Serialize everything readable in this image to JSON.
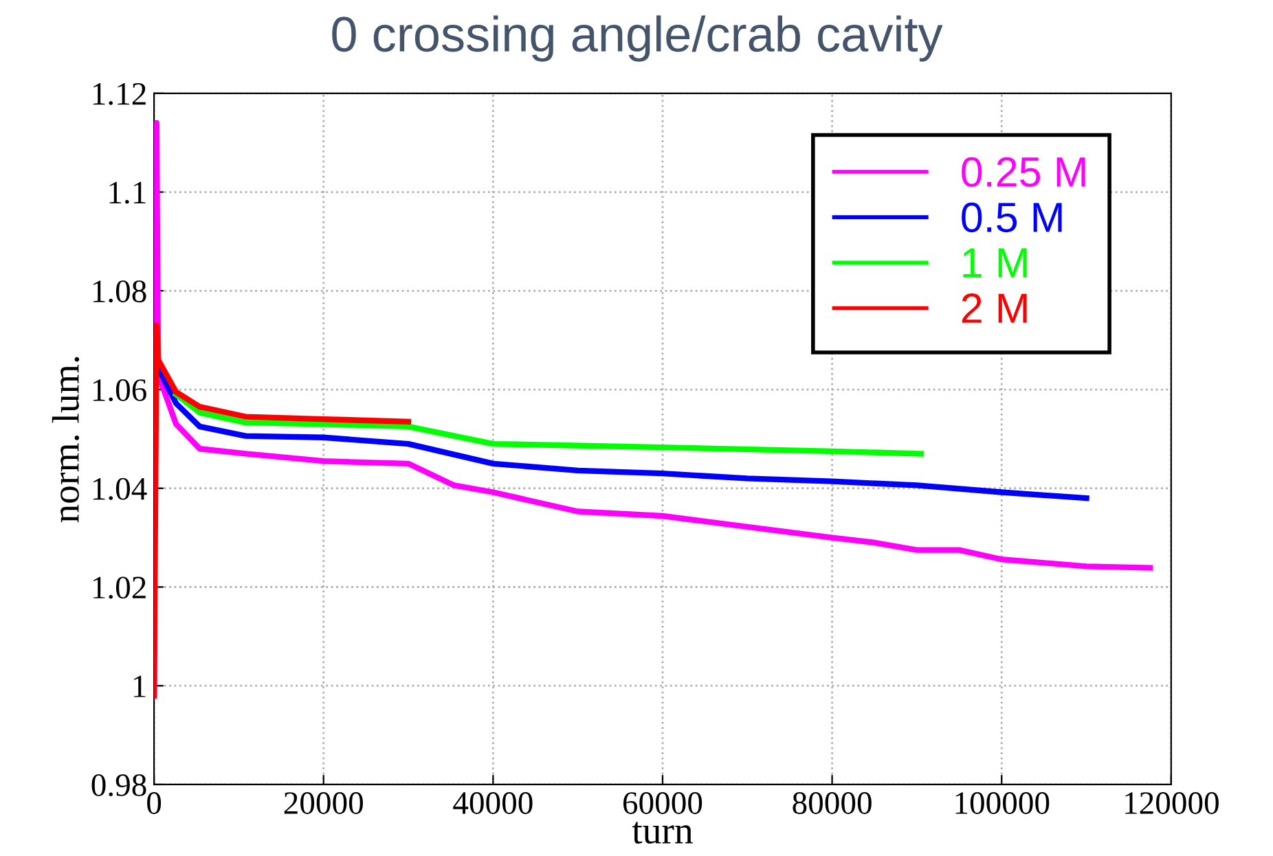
{
  "chart_data": {
    "type": "line",
    "title": "0 crossing angle/crab cavity",
    "xlabel": "turn",
    "ylabel": "norm. lum.",
    "xlim": [
      0,
      120000
    ],
    "xticks": [
      0,
      20000,
      40000,
      60000,
      80000,
      100000,
      120000
    ],
    "ylim": [
      0.98,
      1.12
    ],
    "yticks": [
      0.98,
      1,
      1.02,
      1.04,
      1.06,
      1.08,
      1.1,
      1.12
    ],
    "grid": true,
    "legend": "top right",
    "series": [
      {
        "name": "0.25 M",
        "color": "#ff00ff",
        "x": [
          0,
          300,
          500,
          2600,
          5400,
          10800,
          20000,
          30000,
          35400,
          40000,
          50000,
          60000,
          70000,
          80000,
          85000,
          90000,
          95000,
          100000,
          110000,
          117500
        ],
        "values": [
          0.998,
          1.114,
          1.063,
          1.053,
          1.048,
          1.047,
          1.0455,
          1.045,
          1.0406,
          1.0392,
          1.0353,
          1.0344,
          1.0322,
          1.03,
          1.029,
          1.0275,
          1.0275,
          1.0256,
          1.0242,
          1.0239
        ]
      },
      {
        "name": "0.5 M",
        "color": "#0000ff",
        "x": [
          500,
          2600,
          5400,
          10800,
          20000,
          30000,
          40000,
          50000,
          60000,
          70000,
          80000,
          90000,
          100000,
          110000
        ],
        "values": [
          1.0644,
          1.0572,
          1.0525,
          1.0506,
          1.0503,
          1.049,
          1.045,
          1.0436,
          1.043,
          1.042,
          1.0414,
          1.0406,
          1.0392,
          1.038
        ]
      },
      {
        "name": "1 M",
        "color": "#00ff00",
        "x": [
          2600,
          5400,
          10800,
          20000,
          30000,
          40000,
          60000,
          80000,
          90500
        ],
        "values": [
          1.059,
          1.0553,
          1.0533,
          1.053,
          1.0525,
          1.049,
          1.0483,
          1.0475,
          1.047
        ]
      },
      {
        "name": "2 M",
        "color": "#ff0000",
        "x": [
          0,
          300,
          500,
          2600,
          5400,
          10800,
          20000,
          30000
        ],
        "values": [
          0.998,
          1.073,
          1.066,
          1.0595,
          1.0565,
          1.0545,
          1.054,
          1.0535
        ]
      }
    ]
  }
}
